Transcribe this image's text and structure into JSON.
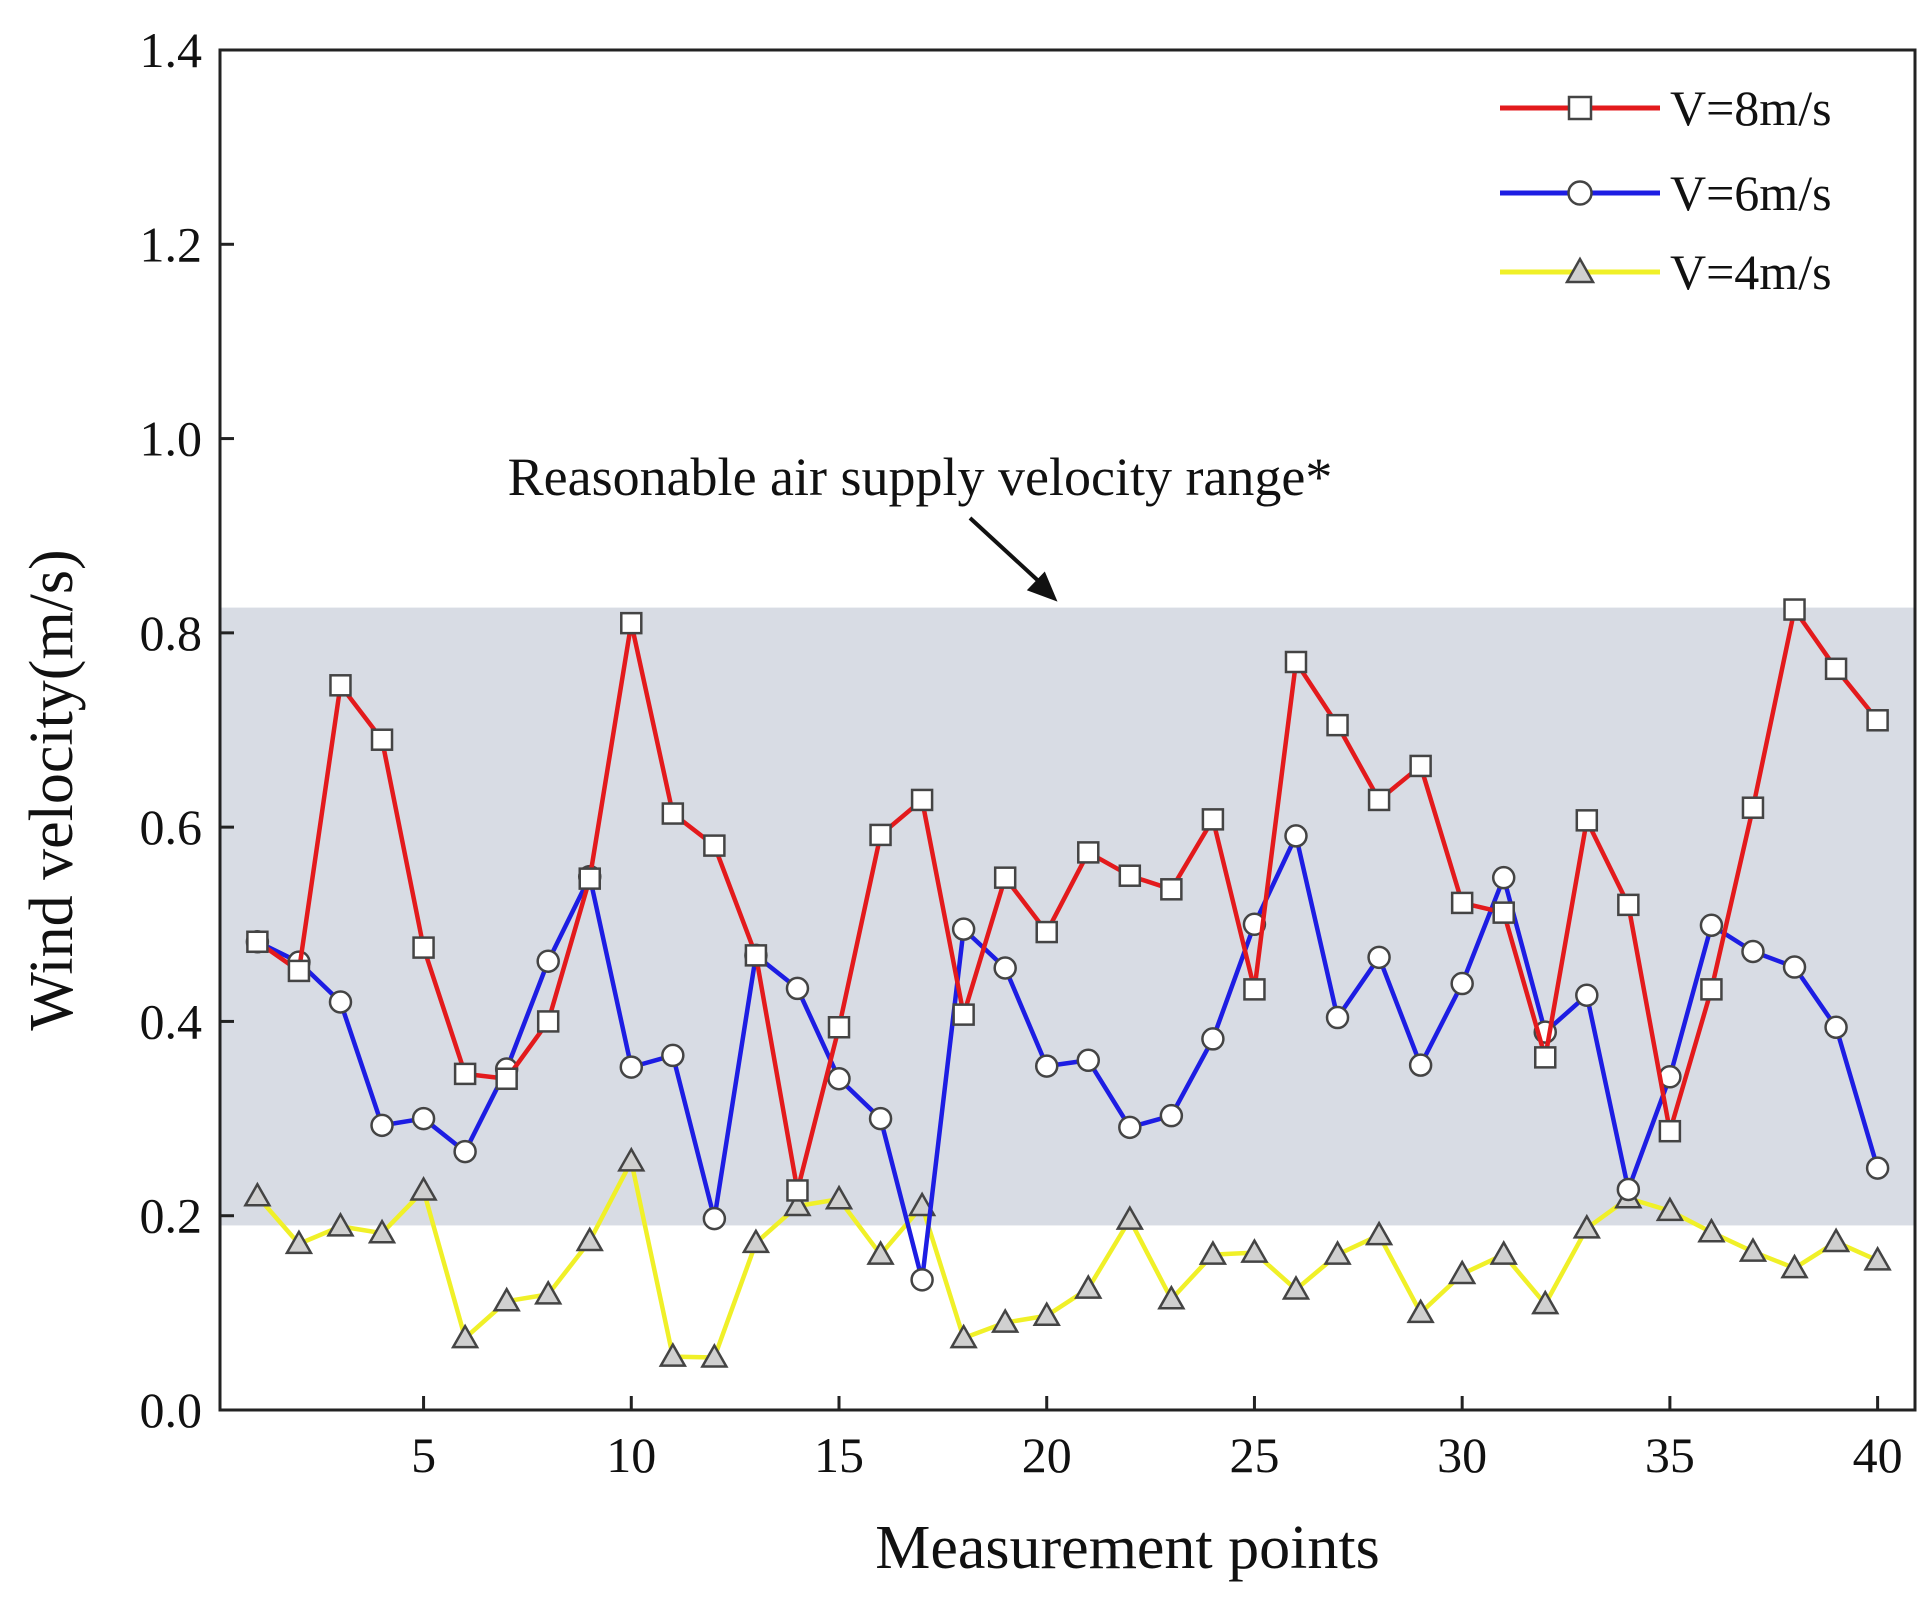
{
  "chart_data": {
    "type": "line",
    "title": "",
    "xlabel": "Measurement points",
    "ylabel": "Wind velocity(m/s)",
    "xlim": [
      0.1,
      40.9
    ],
    "ylim": [
      0.0,
      1.4
    ],
    "xticks": [
      5,
      10,
      15,
      20,
      25,
      30,
      35,
      40
    ],
    "xtick_labels": [
      "5",
      "10",
      "15",
      "20",
      "25",
      "30",
      "35",
      "40"
    ],
    "yticks": [
      0.0,
      0.2,
      0.4,
      0.6,
      0.8,
      1.0,
      1.2,
      1.4
    ],
    "ytick_labels": [
      "0.0",
      "0.2",
      "0.4",
      "0.6",
      "0.8",
      "1.0",
      "1.2",
      "1.4"
    ],
    "grid": false,
    "legend_position": "top-right",
    "band": {
      "y_min": 0.19,
      "y_max": 0.826,
      "color": "#d8dce4"
    },
    "annotation": {
      "text": "Reasonable air supply velocity range*",
      "x_target": 20.5,
      "y_target": 0.826
    },
    "x": [
      1,
      2,
      3,
      4,
      5,
      6,
      7,
      8,
      9,
      10,
      11,
      12,
      13,
      14,
      15,
      16,
      17,
      18,
      19,
      20,
      21,
      22,
      23,
      24,
      25,
      26,
      27,
      28,
      29,
      30,
      31,
      32,
      33,
      34,
      35,
      36,
      37,
      38,
      39,
      40
    ],
    "series": [
      {
        "name": "V=8m/s",
        "color": "#e31a1c",
        "marker": "square",
        "values": [
          0.482,
          0.452,
          0.746,
          0.69,
          0.476,
          0.346,
          0.341,
          0.4,
          0.547,
          0.81,
          0.614,
          0.581,
          0.468,
          0.226,
          0.394,
          0.592,
          0.628,
          0.407,
          0.548,
          0.492,
          0.574,
          0.55,
          0.536,
          0.608,
          0.433,
          0.77,
          0.705,
          0.628,
          0.663,
          0.522,
          0.512,
          0.363,
          0.607,
          0.52,
          0.287,
          0.433,
          0.62,
          0.824,
          0.763,
          0.71
        ]
      },
      {
        "name": "V=6m/s",
        "color": "#1d1de3",
        "marker": "circle",
        "values": [
          0.482,
          0.461,
          0.42,
          0.293,
          0.3,
          0.266,
          0.351,
          0.462,
          0.549,
          0.353,
          0.365,
          0.197,
          0.468,
          0.434,
          0.341,
          0.3,
          0.134,
          0.495,
          0.455,
          0.354,
          0.36,
          0.291,
          0.303,
          0.382,
          0.5,
          0.591,
          0.404,
          0.466,
          0.355,
          0.439,
          0.548,
          0.389,
          0.427,
          0.227,
          0.343,
          0.499,
          0.472,
          0.456,
          0.394,
          0.249
        ]
      },
      {
        "name": "V=4m/s",
        "color": "#f0f028",
        "marker": "triangle",
        "values": [
          0.22,
          0.171,
          0.189,
          0.182,
          0.226,
          0.074,
          0.112,
          0.119,
          0.174,
          0.256,
          0.055,
          0.054,
          0.172,
          0.21,
          0.217,
          0.16,
          0.21,
          0.074,
          0.09,
          0.097,
          0.125,
          0.196,
          0.114,
          0.16,
          0.162,
          0.124,
          0.16,
          0.18,
          0.1,
          0.14,
          0.16,
          0.109,
          0.187,
          0.218,
          0.205,
          0.183,
          0.163,
          0.146,
          0.173,
          0.154
        ]
      }
    ]
  }
}
